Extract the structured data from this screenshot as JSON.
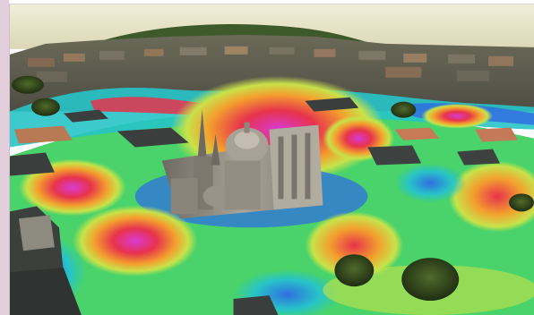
{
  "scene": {
    "subject": "cathedral",
    "overlay": "heatmap"
  },
  "colors": {
    "sky": "#e6e2c6",
    "heat_low": "#2f6fe0",
    "heat_mid_low": "#27c4c8",
    "heat_mid": "#49d36a",
    "heat_mid_high": "#c8e24a",
    "heat_high": "#f3a02e",
    "heat_peak": "#e7334c",
    "heat_extreme": "#d93ad4",
    "roof_dark": "#3a3f3d",
    "stone": "#9f988d",
    "frame_band": "#e3cfdc"
  }
}
